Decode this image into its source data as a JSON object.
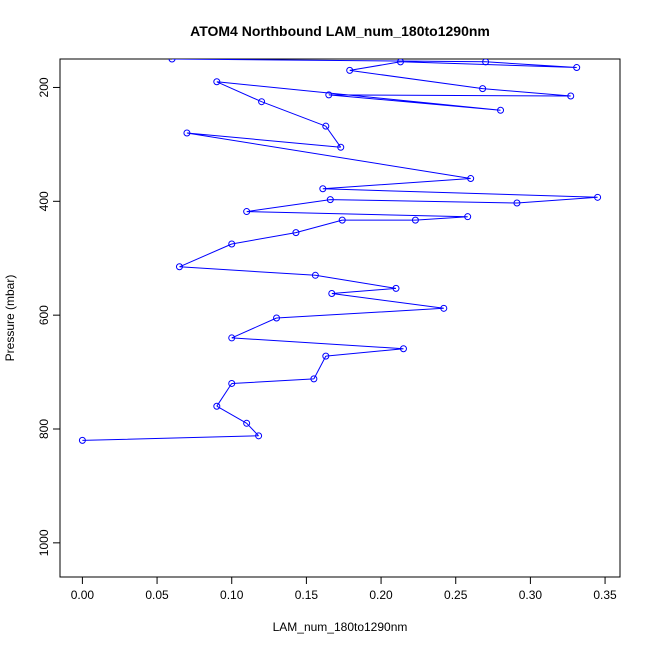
{
  "chart_data": {
    "type": "line",
    "title": "ATOM4 Northbound LAM_num_180to1290nm",
    "xlabel": "LAM_num_180to1290nm",
    "ylabel": "Pressure (mbar)",
    "xlim": [
      -0.015,
      0.36
    ],
    "ylim": [
      1060,
      150
    ],
    "y_reversed": true,
    "x_ticks": [
      0.0,
      0.05,
      0.1,
      0.15,
      0.2,
      0.25,
      0.3,
      0.35
    ],
    "x_tick_labels": [
      "0.00",
      "0.05",
      "0.10",
      "0.15",
      "0.20",
      "0.25",
      "0.30",
      "0.35"
    ],
    "y_ticks": [
      200,
      400,
      600,
      800,
      1000
    ],
    "y_tick_labels": [
      "200",
      "400",
      "600",
      "800",
      "1000"
    ],
    "grid": false,
    "series": [
      {
        "color": "#0000ff",
        "points": [
          {
            "x": 0.06,
            "y": 150
          },
          {
            "x": 0.27,
            "y": 155
          },
          {
            "x": 0.331,
            "y": 165
          },
          {
            "x": 0.213,
            "y": 155
          },
          {
            "x": 0.179,
            "y": 170
          },
          {
            "x": 0.268,
            "y": 202
          },
          {
            "x": 0.327,
            "y": 215
          },
          {
            "x": 0.165,
            "y": 213
          },
          {
            "x": 0.28,
            "y": 240
          },
          {
            "x": 0.09,
            "y": 190
          },
          {
            "x": 0.12,
            "y": 225
          },
          {
            "x": 0.163,
            "y": 268
          },
          {
            "x": 0.173,
            "y": 305
          },
          {
            "x": 0.07,
            "y": 280
          },
          {
            "x": 0.26,
            "y": 360
          },
          {
            "x": 0.161,
            "y": 378
          },
          {
            "x": 0.345,
            "y": 393
          },
          {
            "x": 0.291,
            "y": 403
          },
          {
            "x": 0.166,
            "y": 397
          },
          {
            "x": 0.11,
            "y": 418
          },
          {
            "x": 0.258,
            "y": 427
          },
          {
            "x": 0.223,
            "y": 433
          },
          {
            "x": 0.174,
            "y": 433
          },
          {
            "x": 0.143,
            "y": 455
          },
          {
            "x": 0.1,
            "y": 475
          },
          {
            "x": 0.065,
            "y": 515
          },
          {
            "x": 0.156,
            "y": 530
          },
          {
            "x": 0.21,
            "y": 553
          },
          {
            "x": 0.167,
            "y": 562
          },
          {
            "x": 0.242,
            "y": 588
          },
          {
            "x": 0.13,
            "y": 605
          },
          {
            "x": 0.1,
            "y": 640
          },
          {
            "x": 0.215,
            "y": 659
          },
          {
            "x": 0.163,
            "y": 672
          },
          {
            "x": 0.155,
            "y": 712
          },
          {
            "x": 0.1,
            "y": 720
          },
          {
            "x": 0.09,
            "y": 760
          },
          {
            "x": 0.11,
            "y": 790
          },
          {
            "x": 0.118,
            "y": 812
          },
          {
            "x": 0.0,
            "y": 820
          }
        ]
      }
    ]
  }
}
